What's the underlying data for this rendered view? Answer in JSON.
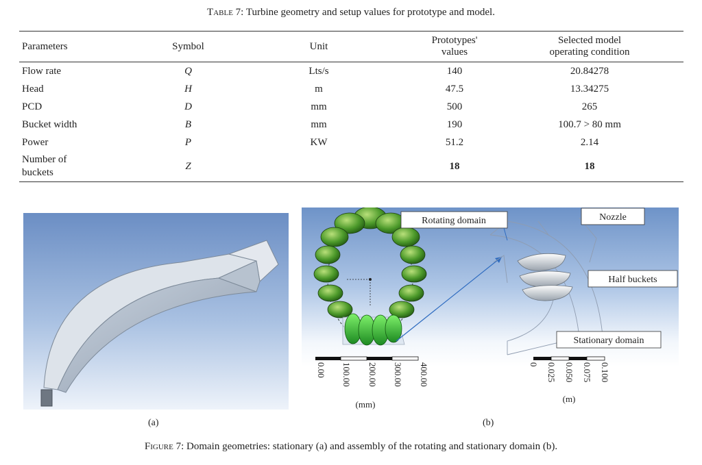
{
  "table": {
    "caption_label": "Table 7:",
    "caption_text": "Turbine geometry and setup values for prototype and model.",
    "headers": {
      "parameters": "Parameters",
      "symbol": "Symbol",
      "unit": "Unit",
      "prototype_line1": "Prototypes'",
      "prototype_line2": "values",
      "model_line1": "Selected model",
      "model_line2": "operating condition"
    },
    "rows": [
      {
        "parameter": "Flow rate",
        "symbol": "Q",
        "unit": "Lts/s",
        "prototype": "140",
        "model": "20.84278"
      },
      {
        "parameter": "Head",
        "symbol": "H",
        "unit": "m",
        "prototype": "47.5",
        "model": "13.34275"
      },
      {
        "parameter": "PCD",
        "symbol": "D",
        "unit": "mm",
        "prototype": "500",
        "model": "265"
      },
      {
        "parameter": "Bucket width",
        "symbol": "B",
        "unit": "mm",
        "prototype": "190",
        "model": "100.7 > 80 mm"
      },
      {
        "parameter": "Power",
        "symbol": "P",
        "unit": "KW",
        "prototype": "51.2",
        "model": "2.14"
      }
    ],
    "last_row": {
      "parameter_line1": "Number of",
      "parameter_line2": "buckets",
      "symbol": "Z",
      "unit": "",
      "prototype": "18",
      "model": "18"
    }
  },
  "figure": {
    "panel_b_labels": {
      "rotating_domain": "Rotating domain",
      "nozzle": "Nozzle",
      "half_buckets": "Half buckets",
      "stationary_domain": "Stationary domain"
    },
    "scale_mm": {
      "ticks": [
        "0.00",
        "100.00",
        "200.00",
        "300.00",
        "400.00"
      ],
      "unit": "(mm)"
    },
    "scale_m": {
      "ticks": [
        "0",
        "0.025",
        "0.050",
        "0.075",
        "0.100"
      ],
      "unit": "(m)"
    },
    "sublabel_a": "(a)",
    "sublabel_b": "(b)",
    "caption_label": "Figure 7:",
    "caption_text": "Domain geometries: stationary (a) and assembly of the rotating and stationary domain (b)."
  }
}
